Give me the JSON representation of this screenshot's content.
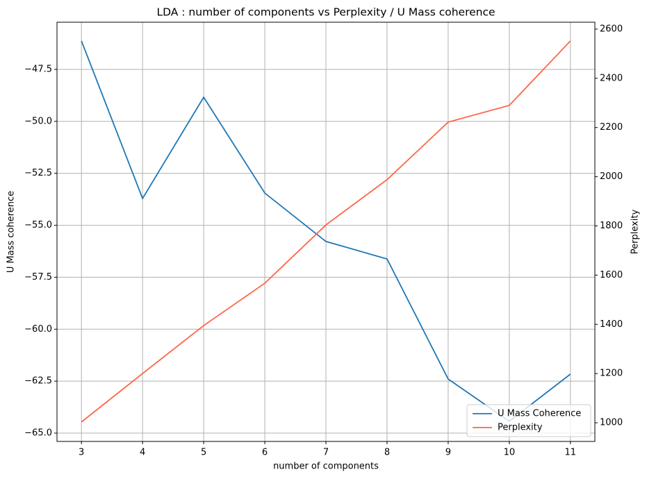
{
  "chart_data": {
    "type": "line",
    "title": "LDA : number of components vs Perplexity / U Mass coherence",
    "x_label": "number of components",
    "y_label": "U Mass coherence",
    "y2_label": "Perplexity",
    "x": [
      3,
      4,
      5,
      6,
      7,
      8,
      9,
      10,
      11
    ],
    "series": [
      {
        "name": "U Mass Coherence",
        "color": "#1f77b4",
        "values": [
          -46.13,
          -53.71,
          -48.84,
          -53.45,
          -55.78,
          -56.62,
          -62.4,
          -64.43,
          -62.16
        ]
      },
      {
        "name": "Perplexity",
        "color": "#ff6347",
        "axis": "y2",
        "values": [
          1003,
          1200,
          1395,
          1567,
          1804,
          1988,
          2222,
          2290,
          2552
        ]
      }
    ],
    "xlim": [
      2.6,
      11.4
    ],
    "xticks": [
      3,
      4,
      5,
      6,
      7,
      8,
      9,
      10,
      11
    ],
    "ylim": [
      -65.4,
      -45.23
    ],
    "yticks": [
      {
        "value": -65,
        "label": "−65.0"
      },
      {
        "value": -62.5,
        "label": "−62.5"
      },
      {
        "value": -60,
        "label": "−60.0"
      },
      {
        "value": -57.5,
        "label": "−57.5"
      },
      {
        "value": -55,
        "label": "−55.0"
      },
      {
        "value": -52.5,
        "label": "−52.5"
      },
      {
        "value": -50,
        "label": "−50.0"
      },
      {
        "value": -47.5,
        "label": "−47.5"
      }
    ],
    "y2lim": [
      924,
      2628
    ],
    "y2ticks": [
      1000,
      1200,
      1400,
      1600,
      1800,
      2000,
      2200,
      2400,
      2600
    ],
    "grid": true,
    "legend": "lower right"
  }
}
